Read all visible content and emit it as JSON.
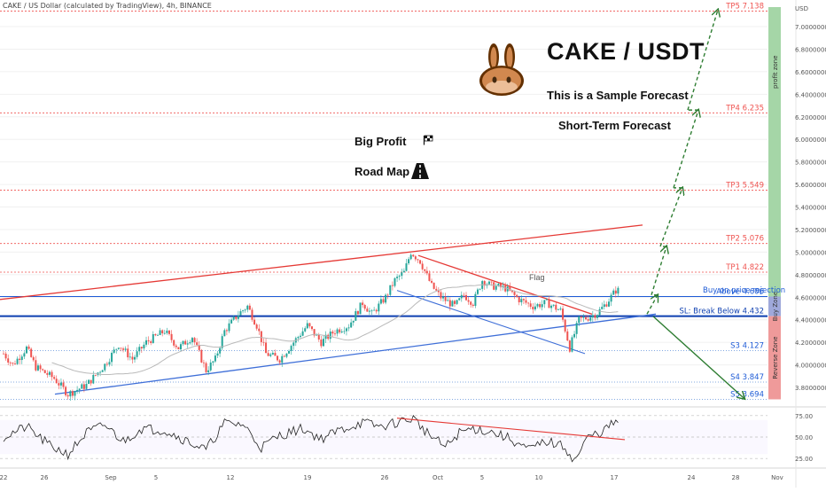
{
  "header": {
    "symbol_line": "CAKE / US Dollar (calculated by TradingView), 4h, BINANCE"
  },
  "titles": {
    "main": "CAKE / USDT",
    "sample": "This is a Sample Forecast",
    "short": "Short-Term Forecast",
    "big_profit": "Big Profit",
    "road_map": "Road Map",
    "flag": "Flag"
  },
  "axis": {
    "currency": "USD",
    "price_ticks": [
      "7.0000000",
      "6.8000000",
      "6.6000000",
      "6.4000000",
      "6.2000000",
      "6.0000000",
      "5.8000000",
      "5.6000000",
      "5.4000000",
      "5.2000000",
      "5.0000000",
      "4.8000000",
      "4.6000000",
      "4.4000000",
      "4.2000000",
      "4.0000000",
      "3.8000000"
    ],
    "rsi_ticks": [
      "75.00",
      "50.00",
      "25.00"
    ],
    "date_ticks": [
      "22",
      "26",
      "Sep",
      "5",
      "12",
      "19",
      "26",
      "Oct",
      "5",
      "10",
      "17",
      "24",
      "28",
      "Nov"
    ]
  },
  "levels": [
    {
      "key": "tp5",
      "label": "TP5 7.138",
      "price": 7.138
    },
    {
      "key": "tp4",
      "label": "TP4 6.235",
      "price": 6.235
    },
    {
      "key": "tp3",
      "label": "TP3 5.549",
      "price": 5.549
    },
    {
      "key": "tp2",
      "label": "TP2 5.076",
      "price": 5.076
    },
    {
      "key": "tp1",
      "label": "TP1 4.822",
      "price": 4.822
    },
    {
      "key": "above",
      "label": "Above 4.606",
      "price": 4.606
    },
    {
      "key": "sl",
      "label": "SL: Break Below 4.432",
      "price": 4.432
    },
    {
      "key": "s3",
      "label": "S3 4.127",
      "price": 4.127
    },
    {
      "key": "s4",
      "label": "S4 3.847",
      "price": 3.847
    },
    {
      "key": "s5",
      "label": "S5 3.694",
      "price": 3.694
    }
  ],
  "labels": {
    "buy_rejection": "Buy on price rejection"
  },
  "zones": {
    "profit": "profit zone",
    "buy": "Buy Zone",
    "reverse": "Reverse Zone"
  },
  "colors": {
    "up": "#26a69a",
    "down": "#ef5350",
    "tp_line": "#ef5350",
    "buy_line": "#1e5bd6",
    "profit_zone": "#a5d6a7",
    "buy_zone": "#9fa8da",
    "reverse_zone": "#ef9a9a",
    "arrow": "#2e7d32",
    "resistance": "#e53935",
    "support": "#3f6fd8"
  },
  "chart_data": {
    "type": "candlestick",
    "title": "CAKE / USDT",
    "ylim": [
      3.55,
      7.3
    ],
    "rsi_ylim": [
      15,
      85
    ],
    "price_path": [
      {
        "t": 0,
        "p": 4.1
      },
      {
        "t": 4,
        "p": 4.0
      },
      {
        "t": 10,
        "p": 4.15
      },
      {
        "t": 14,
        "p": 3.98
      },
      {
        "t": 22,
        "p": 3.88
      },
      {
        "t": 28,
        "p": 3.74
      },
      {
        "t": 36,
        "p": 3.82
      },
      {
        "t": 44,
        "p": 4.0
      },
      {
        "t": 50,
        "p": 4.18
      },
      {
        "t": 56,
        "p": 4.05
      },
      {
        "t": 62,
        "p": 4.2
      },
      {
        "t": 70,
        "p": 4.3
      },
      {
        "t": 76,
        "p": 4.15
      },
      {
        "t": 82,
        "p": 4.25
      },
      {
        "t": 88,
        "p": 3.95
      },
      {
        "t": 92,
        "p": 4.05
      },
      {
        "t": 96,
        "p": 4.3
      },
      {
        "t": 102,
        "p": 4.45
      },
      {
        "t": 106,
        "p": 4.52
      },
      {
        "t": 110,
        "p": 4.35
      },
      {
        "t": 114,
        "p": 4.1
      },
      {
        "t": 120,
        "p": 4.05
      },
      {
        "t": 126,
        "p": 4.2
      },
      {
        "t": 132,
        "p": 4.35
      },
      {
        "t": 138,
        "p": 4.2
      },
      {
        "t": 144,
        "p": 4.3
      },
      {
        "t": 150,
        "p": 4.35
      },
      {
        "t": 156,
        "p": 4.55
      },
      {
        "t": 160,
        "p": 4.45
      },
      {
        "t": 166,
        "p": 4.6
      },
      {
        "t": 170,
        "p": 4.75
      },
      {
        "t": 174,
        "p": 4.82
      },
      {
        "t": 177,
        "p": 5.0
      },
      {
        "t": 181,
        "p": 4.92
      },
      {
        "t": 186,
        "p": 4.7
      },
      {
        "t": 190,
        "p": 4.6
      },
      {
        "t": 196,
        "p": 4.52
      },
      {
        "t": 200,
        "p": 4.62
      },
      {
        "t": 204,
        "p": 4.55
      },
      {
        "t": 208,
        "p": 4.75
      },
      {
        "t": 212,
        "p": 4.7
      },
      {
        "t": 218,
        "p": 4.68
      },
      {
        "t": 224,
        "p": 4.58
      },
      {
        "t": 230,
        "p": 4.52
      },
      {
        "t": 236,
        "p": 4.55
      },
      {
        "t": 242,
        "p": 4.48
      },
      {
        "t": 246,
        "p": 4.15
      },
      {
        "t": 250,
        "p": 4.4
      },
      {
        "t": 254,
        "p": 4.42
      },
      {
        "t": 258,
        "p": 4.46
      },
      {
        "t": 262,
        "p": 4.55
      },
      {
        "t": 266,
        "p": 4.66
      }
    ],
    "rsi_path": [
      {
        "t": 0,
        "p": 50
      },
      {
        "t": 10,
        "p": 62
      },
      {
        "t": 20,
        "p": 40
      },
      {
        "t": 28,
        "p": 30
      },
      {
        "t": 36,
        "p": 55
      },
      {
        "t": 44,
        "p": 64
      },
      {
        "t": 52,
        "p": 45
      },
      {
        "t": 60,
        "p": 60
      },
      {
        "t": 70,
        "p": 58
      },
      {
        "t": 80,
        "p": 45
      },
      {
        "t": 88,
        "p": 35
      },
      {
        "t": 96,
        "p": 66
      },
      {
        "t": 104,
        "p": 65
      },
      {
        "t": 112,
        "p": 38
      },
      {
        "t": 120,
        "p": 52
      },
      {
        "t": 130,
        "p": 60
      },
      {
        "t": 138,
        "p": 48
      },
      {
        "t": 146,
        "p": 58
      },
      {
        "t": 156,
        "p": 67
      },
      {
        "t": 164,
        "p": 62
      },
      {
        "t": 172,
        "p": 68
      },
      {
        "t": 178,
        "p": 72
      },
      {
        "t": 184,
        "p": 55
      },
      {
        "t": 192,
        "p": 38
      },
      {
        "t": 198,
        "p": 55
      },
      {
        "t": 204,
        "p": 60
      },
      {
        "t": 212,
        "p": 56
      },
      {
        "t": 220,
        "p": 48
      },
      {
        "t": 228,
        "p": 35
      },
      {
        "t": 236,
        "p": 45
      },
      {
        "t": 244,
        "p": 38
      },
      {
        "t": 248,
        "p": 22
      },
      {
        "t": 254,
        "p": 50
      },
      {
        "t": 260,
        "p": 56
      },
      {
        "t": 266,
        "p": 68
      }
    ],
    "candle_count": 268
  }
}
